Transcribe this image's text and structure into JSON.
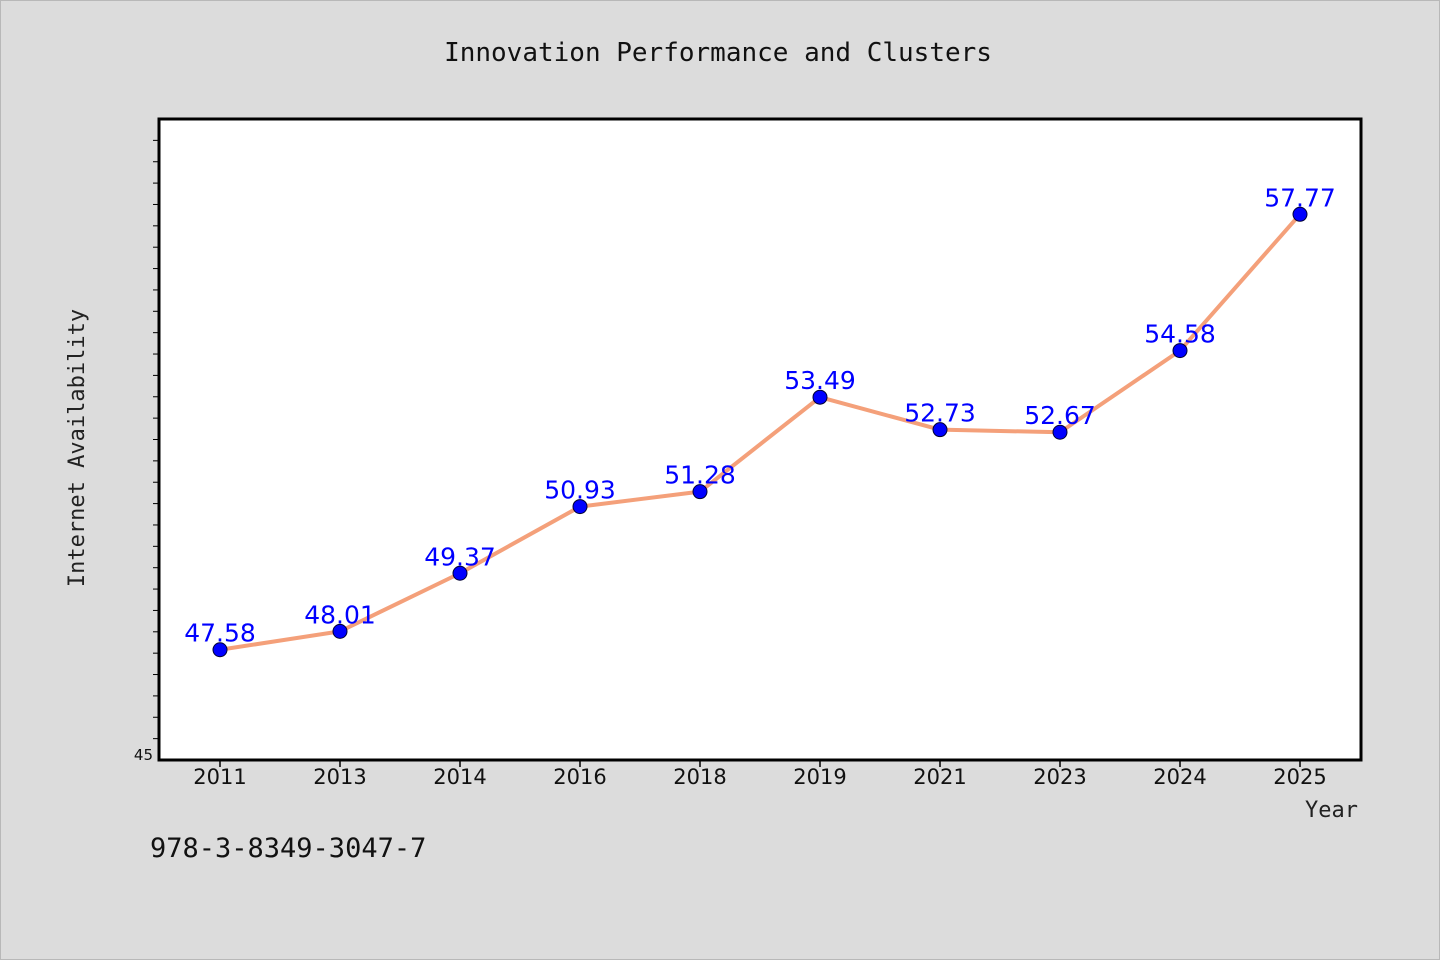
{
  "chart_data": {
    "type": "line",
    "title": "Innovation Performance and Clusters",
    "xlabel": "Year",
    "ylabel": "Internet Availability",
    "categories": [
      "2011",
      "2013",
      "2014",
      "2016",
      "2018",
      "2019",
      "2021",
      "2023",
      "2024",
      "2025"
    ],
    "series": [
      {
        "values": [
          47.58,
          48.01,
          49.37,
          50.93,
          51.28,
          53.49,
          52.73,
          52.67,
          54.58,
          57.77
        ],
        "labels": [
          "47.58",
          "48.01",
          "49.37",
          "50.93",
          "51.28",
          "53.49",
          "52.73",
          "52.67",
          "54.58",
          "57.77"
        ]
      }
    ],
    "ylim": [
      45,
      60
    ],
    "ytick_labels": [
      {
        "value": 45,
        "label": "45"
      }
    ],
    "grid": false,
    "legend": "none",
    "colors": {
      "line": "#f4a07a",
      "marker": "#0000ff",
      "data_label": "#0000ff",
      "plot_background": "#ffffff",
      "figure_background": "#dcdcdc"
    }
  },
  "footer": {
    "isbn": "978-3-8349-3047-7"
  }
}
